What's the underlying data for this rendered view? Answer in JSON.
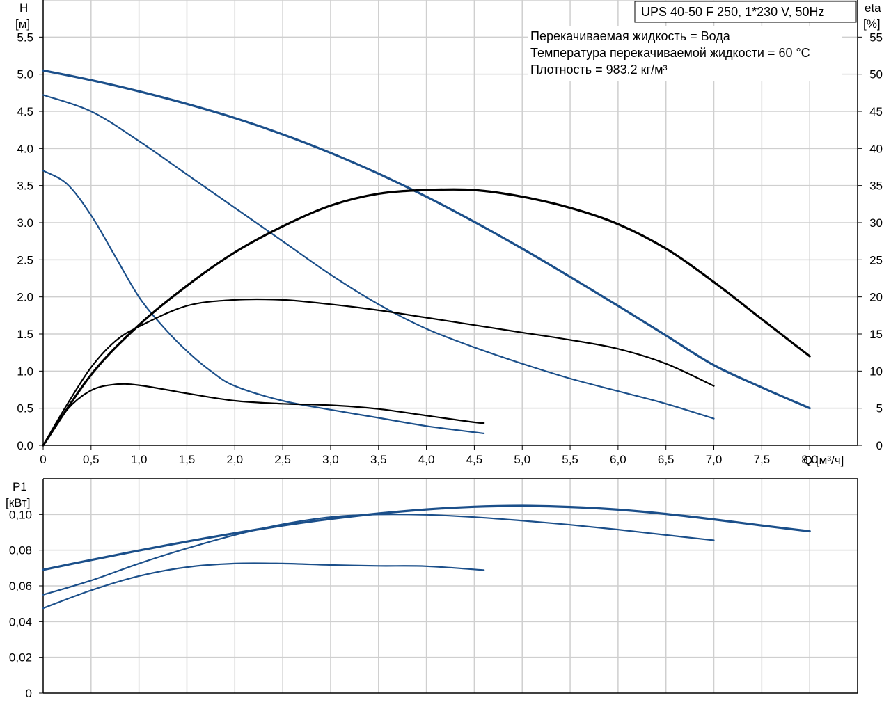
{
  "chart_data": [
    {
      "type": "line",
      "title": "UPS 40-50 F 250, 1*230 V, 50Hz",
      "notes": [
        "Перекачиваемая жидкость = Вода",
        "Температура перекачиваемой жидкости = 60 °C",
        "Плотность = 983.2 кг/м³"
      ],
      "xlabel": "Q [м³/ч]",
      "ylabel": [
        "H",
        "[м]"
      ],
      "y2label": [
        "eta",
        "[%]"
      ],
      "xlim": [
        0,
        8.5
      ],
      "ylim": [
        0,
        6.0
      ],
      "y2lim": [
        0,
        60
      ],
      "grid": true,
      "x_ticks": [
        "0",
        "0,5",
        "1,0",
        "1,5",
        "2,0",
        "2,5",
        "3,0",
        "3,5",
        "4,0",
        "4,5",
        "5,0",
        "5,5",
        "6,0",
        "6,5",
        "7,0",
        "7,5",
        "8,0"
      ],
      "y_ticks": [
        "0.0",
        "0.5",
        "1.0",
        "1.5",
        "2.0",
        "2.5",
        "3.0",
        "3.5",
        "4.0",
        "4.5",
        "5.0",
        "5.5"
      ],
      "y2_ticks": [
        "0",
        "5",
        "10",
        "15",
        "20",
        "25",
        "30",
        "35",
        "40",
        "45",
        "50",
        "55"
      ],
      "series": [
        {
          "axis": "H",
          "speed": 3,
          "color": "#1b4f8a",
          "width": 3.2,
          "x": [
            0,
            0.5,
            1,
            1.5,
            2,
            2.5,
            3,
            3.5,
            4,
            4.5,
            5,
            5.5,
            6,
            6.5,
            7,
            7.5,
            8
          ],
          "y": [
            5.05,
            4.92,
            4.77,
            4.6,
            4.41,
            4.19,
            3.94,
            3.66,
            3.35,
            3.01,
            2.65,
            2.27,
            1.88,
            1.48,
            1.08,
            0.78,
            0.5
          ]
        },
        {
          "axis": "H",
          "speed": 2,
          "color": "#1b4f8a",
          "width": 2.2,
          "x": [
            0,
            0.5,
            1,
            1.5,
            2,
            2.5,
            3,
            3.5,
            4,
            4.5,
            5,
            5.5,
            6,
            6.5,
            7
          ],
          "y": [
            4.72,
            4.5,
            4.1,
            3.65,
            3.2,
            2.75,
            2.3,
            1.9,
            1.57,
            1.32,
            1.1,
            0.9,
            0.73,
            0.56,
            0.36
          ]
        },
        {
          "axis": "H",
          "speed": 1,
          "color": "#1b4f8a",
          "width": 2.2,
          "x": [
            0,
            0.25,
            0.5,
            0.75,
            1,
            1.25,
            1.5,
            1.75,
            2,
            2.5,
            3,
            3.5,
            4,
            4.6
          ],
          "y": [
            3.7,
            3.52,
            3.1,
            2.55,
            2.0,
            1.6,
            1.27,
            1.0,
            0.8,
            0.6,
            0.48,
            0.37,
            0.26,
            0.16
          ]
        },
        {
          "axis": "eta",
          "speed": 3,
          "color": "#000000",
          "width": 3.2,
          "x": [
            0,
            0.5,
            1,
            1.5,
            2,
            2.5,
            3,
            3.5,
            4,
            4.5,
            5,
            5.5,
            6,
            6.5,
            7,
            7.5,
            8
          ],
          "y": [
            0,
            9.5,
            16.2,
            21.5,
            26,
            29.5,
            32.3,
            33.9,
            34.4,
            34.4,
            33.5,
            32,
            29.8,
            26.5,
            22,
            17,
            12
          ]
        },
        {
          "axis": "eta",
          "speed": 2,
          "color": "#000000",
          "width": 2.2,
          "x": [
            0,
            0.25,
            0.5,
            0.75,
            1,
            1.5,
            2,
            2.5,
            3,
            3.5,
            4,
            4.5,
            5,
            5.5,
            6,
            6.5,
            7
          ],
          "y": [
            0,
            5.5,
            10.5,
            14,
            16,
            18.8,
            19.6,
            19.6,
            19,
            18.2,
            17.2,
            16.2,
            15.2,
            14.2,
            13,
            11,
            8
          ]
        },
        {
          "axis": "eta",
          "speed": 1,
          "color": "#000000",
          "width": 2.2,
          "x": [
            0,
            0.25,
            0.5,
            0.75,
            1,
            1.5,
            2,
            2.5,
            3,
            3.5,
            4,
            4.5,
            4.6
          ],
          "y": [
            0,
            4.8,
            7.4,
            8.2,
            8.1,
            7.0,
            6.0,
            5.6,
            5.4,
            4.9,
            4.0,
            3.1,
            3.0
          ]
        }
      ]
    },
    {
      "type": "line",
      "xlim": [
        0,
        8.5
      ],
      "ylabel": [
        "P1",
        "[кВт]"
      ],
      "ylim": [
        0,
        0.12
      ],
      "grid": true,
      "y_ticks": [
        "0",
        "0,02",
        "0,04",
        "0,06",
        "0,08",
        "0,10"
      ],
      "series": [
        {
          "speed": 3,
          "color": "#1b4f8a",
          "width": 3.2,
          "x": [
            0,
            0.5,
            1,
            1.5,
            2,
            2.5,
            3,
            3.5,
            4,
            4.5,
            5,
            5.5,
            6,
            6.5,
            7,
            7.5,
            8
          ],
          "y": [
            0.069,
            0.0745,
            0.0798,
            0.0848,
            0.0895,
            0.0938,
            0.0975,
            0.1005,
            0.1028,
            0.1043,
            0.1048,
            0.1042,
            0.1027,
            0.1003,
            0.0972,
            0.0938,
            0.0906
          ]
        },
        {
          "speed": 2,
          "color": "#1b4f8a",
          "width": 2.2,
          "x": [
            0,
            0.5,
            1,
            1.5,
            2,
            2.5,
            3,
            3.5,
            4,
            4.5,
            5,
            5.5,
            6,
            6.5,
            7
          ],
          "y": [
            0.055,
            0.063,
            0.0725,
            0.081,
            0.0885,
            0.0945,
            0.0985,
            0.1,
            0.0998,
            0.0985,
            0.0965,
            0.0942,
            0.0915,
            0.0885,
            0.0855
          ]
        },
        {
          "speed": 1,
          "color": "#1b4f8a",
          "width": 2.2,
          "x": [
            0,
            0.5,
            1,
            1.5,
            2,
            2.5,
            3,
            3.5,
            4,
            4.6
          ],
          "y": [
            0.0475,
            0.0575,
            0.0655,
            0.0705,
            0.0725,
            0.0725,
            0.0717,
            0.0712,
            0.071,
            0.0688
          ]
        }
      ]
    }
  ]
}
